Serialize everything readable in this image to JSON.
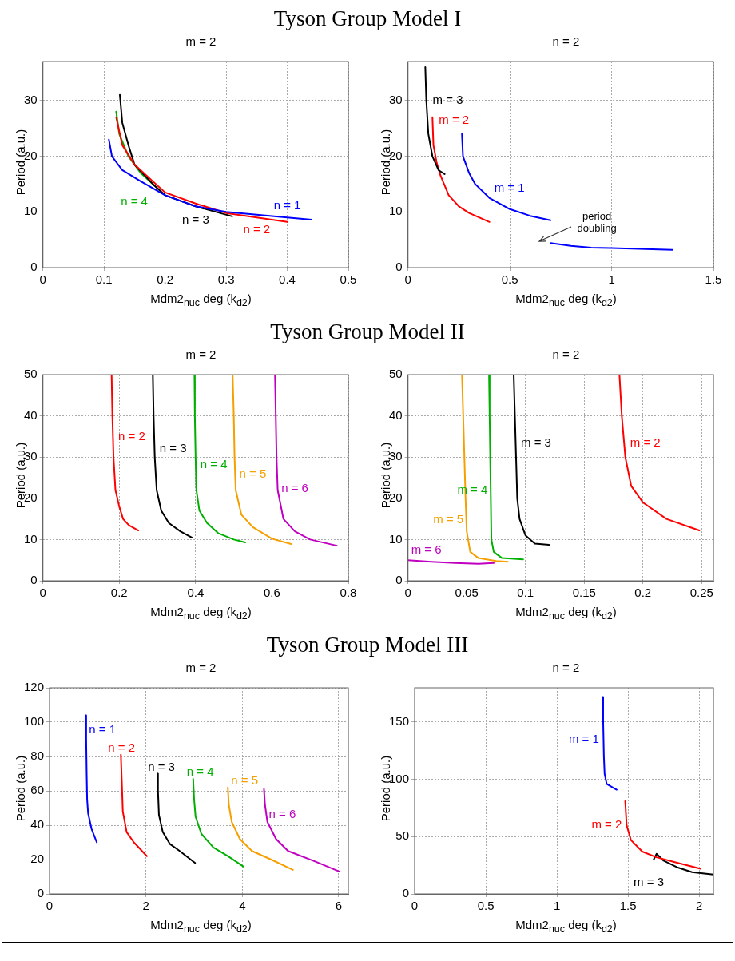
{
  "chart_data": [
    {
      "type": "other",
      "title": "Tyson Group Model I"
    },
    {
      "type": "line",
      "title": "m = 2",
      "xlabel": "Mdm2$_{nuc}$ deg  (k$_{d2}$)",
      "ylabel": "Period (a.u.)",
      "xlim": [
        0,
        0.5
      ],
      "xticks": [
        0,
        0.1,
        0.2,
        0.3,
        0.4,
        0.5
      ],
      "ylim": [
        0,
        37
      ],
      "yticks": [
        0,
        10,
        20,
        30
      ],
      "grid": true,
      "marker": "none",
      "series": [
        {
          "name": "n = 1",
          "color": "#0000ff",
          "x": [
            0.108,
            0.113,
            0.13,
            0.16,
            0.2,
            0.25,
            0.3,
            0.35,
            0.4,
            0.44
          ],
          "values": [
            23,
            20,
            17.5,
            15.5,
            13,
            11,
            10,
            9.5,
            9,
            8.6
          ]
        },
        {
          "name": "n = 2",
          "color": "#ff0000",
          "x": [
            0.12,
            0.13,
            0.15,
            0.18,
            0.2,
            0.25,
            0.3,
            0.35,
            0.4
          ],
          "values": [
            27,
            22,
            18.5,
            15.5,
            13.5,
            11.5,
            9.8,
            9,
            8.2
          ]
        },
        {
          "name": "n = 3",
          "color": "#000000",
          "x": [
            0.126,
            0.13,
            0.14,
            0.15,
            0.18,
            0.2,
            0.25,
            0.31
          ],
          "values": [
            31,
            26,
            22,
            18.5,
            15,
            13,
            11,
            9.2
          ]
        },
        {
          "name": "n = 4",
          "color": "#00b000",
          "x": [
            0.12,
            0.125,
            0.14,
            0.16,
            0.19
          ],
          "values": [
            28,
            24,
            20,
            17,
            14
          ]
        }
      ]
    },
    {
      "type": "line",
      "title": "n = 2",
      "xlabel": "Mdm2$_{nuc}$ deg  (k$_{d2}$)",
      "ylabel": "Period (a.u.)",
      "xlim": [
        0,
        1.5
      ],
      "xticks": [
        0,
        0.5,
        1,
        1.5
      ],
      "ylim": [
        0,
        37
      ],
      "yticks": [
        0,
        10,
        20,
        30
      ],
      "grid": true,
      "marker": "none",
      "series": [
        {
          "name": "m = 3",
          "color": "#000000",
          "x": [
            0.085,
            0.09,
            0.1,
            0.12,
            0.15,
            0.18
          ],
          "values": [
            36,
            30,
            24,
            20,
            17.5,
            16.8
          ]
        },
        {
          "name": "m = 2",
          "color": "#ff0000",
          "x": [
            0.12,
            0.125,
            0.14,
            0.16,
            0.2,
            0.25,
            0.3,
            0.4
          ],
          "values": [
            27,
            22,
            19,
            16.5,
            13,
            11,
            9.8,
            8.2
          ]
        },
        {
          "name": "m = 1",
          "color": "#0000ff",
          "x": [
            0.265,
            0.27,
            0.3,
            0.33,
            0.4,
            0.5,
            0.6,
            0.7
          ],
          "values": [
            24,
            20,
            17,
            15,
            12.5,
            10.5,
            9.3,
            8.5
          ]
        },
        {
          "color": "#0000ff",
          "x": [
            0.7,
            0.8,
            0.9,
            1.0,
            1.1,
            1.3
          ],
          "values": [
            4.4,
            3.9,
            3.6,
            3.5,
            3.4,
            3.2
          ]
        }
      ],
      "annotations": [
        "period doubling"
      ]
    },
    {
      "type": "other",
      "title": "Tyson Group Model II"
    },
    {
      "type": "line",
      "title": "m = 2",
      "xlabel": "Mdm2$_{nuc}$ deg  (k$_{d2}$)",
      "ylabel": "Period (a.u.)",
      "xlim": [
        0,
        0.8
      ],
      "xticks": [
        0,
        0.2,
        0.4,
        0.6,
        0.8
      ],
      "ylim": [
        0,
        50
      ],
      "yticks": [
        0,
        10,
        20,
        30,
        40,
        50
      ],
      "grid": true,
      "marker": "none",
      "series": [
        {
          "name": "n = 2",
          "color": "#ff0000",
          "x": [
            0.18,
            0.182,
            0.185,
            0.19,
            0.2,
            0.21,
            0.225,
            0.25
          ],
          "values": [
            50,
            40,
            30,
            22,
            18,
            15,
            13.5,
            12.2
          ]
        },
        {
          "name": "n = 3",
          "color": "#000000",
          "x": [
            0.288,
            0.29,
            0.293,
            0.298,
            0.31,
            0.33,
            0.36,
            0.39
          ],
          "values": [
            50,
            40,
            30,
            22,
            17,
            14,
            12,
            10.5
          ]
        },
        {
          "name": "n = 4",
          "color": "#00b000",
          "x": [
            0.397,
            0.398,
            0.4,
            0.402,
            0.41,
            0.43,
            0.46,
            0.5,
            0.53
          ],
          "values": [
            50,
            40,
            30,
            22,
            17,
            14,
            11.5,
            10,
            9.3
          ]
        },
        {
          "name": "n = 5",
          "color": "#f5a000",
          "x": [
            0.497,
            0.5,
            0.502,
            0.505,
            0.52,
            0.55,
            0.6,
            0.65
          ],
          "values": [
            50,
            40,
            30,
            22,
            16,
            13,
            10.2,
            8.9
          ]
        },
        {
          "name": "n = 6",
          "color": "#c000c0",
          "x": [
            0.608,
            0.61,
            0.612,
            0.615,
            0.63,
            0.66,
            0.7,
            0.77
          ],
          "values": [
            50,
            40,
            30,
            22,
            15,
            12,
            10,
            8.5
          ]
        }
      ]
    },
    {
      "type": "line",
      "title": "n = 2",
      "xlabel": "Mdm2$_{nuc}$ deg  (k$_{d2}$)",
      "ylabel": "Period (a.u.)",
      "xlim": [
        0,
        0.26
      ],
      "xticks": [
        0,
        0.05,
        0.1,
        0.15,
        0.2,
        0.25
      ],
      "ylim": [
        0,
        50
      ],
      "yticks": [
        0,
        10,
        20,
        30,
        40,
        50
      ],
      "grid": true,
      "marker": "none",
      "series": [
        {
          "name": "m = 2",
          "color": "#ff0000",
          "x": [
            0.18,
            0.182,
            0.185,
            0.19,
            0.2,
            0.22,
            0.248
          ],
          "values": [
            50,
            40,
            30,
            23,
            19,
            15,
            12.2
          ]
        },
        {
          "name": "m = 3",
          "color": "#000000",
          "x": [
            0.09,
            0.091,
            0.092,
            0.093,
            0.095,
            0.1,
            0.108,
            0.12
          ],
          "values": [
            50,
            40,
            30,
            20,
            15,
            11,
            9,
            8.7
          ]
        },
        {
          "name": "m = 4",
          "color": "#00b000",
          "x": [
            0.069,
            0.0695,
            0.07,
            0.0705,
            0.071,
            0.073,
            0.08,
            0.098
          ],
          "values": [
            50,
            40,
            30,
            20,
            10,
            7,
            5.5,
            5.2
          ]
        },
        {
          "name": "m = 5",
          "color": "#f5a000",
          "x": [
            0.046,
            0.047,
            0.048,
            0.049,
            0.05,
            0.053,
            0.06,
            0.075,
            0.085
          ],
          "values": [
            50,
            40,
            30,
            20,
            12,
            7,
            5.5,
            4.8,
            4.6
          ]
        },
        {
          "name": "m = 6",
          "color": "#c000c0",
          "x": [
            0,
            0.02,
            0.04,
            0.06,
            0.073
          ],
          "values": [
            5,
            4.6,
            4.3,
            4.1,
            4.3
          ]
        }
      ]
    },
    {
      "type": "other",
      "title": "Tyson Group Model III"
    },
    {
      "type": "line",
      "title": "m = 2",
      "xlabel": "Mdm2$_{nuc}$ deg  (k$_{d2}$)",
      "ylabel": "Period (a.u.)",
      "xlim": [
        0,
        6.2
      ],
      "xticks": [
        0,
        2,
        4,
        6
      ],
      "ylim": [
        0,
        120
      ],
      "yticks": [
        0,
        20,
        40,
        60,
        80,
        100,
        120
      ],
      "grid": true,
      "marker": "none",
      "series": [
        {
          "name": "n = 1",
          "color": "#0000ff",
          "x": [
            0.75,
            0.76,
            0.77,
            0.78,
            0.8,
            0.87,
            0.98
          ],
          "values": [
            104,
            90,
            70,
            55,
            47,
            38,
            30
          ]
        },
        {
          "name": "n = 2",
          "color": "#ff0000",
          "x": [
            1.48,
            1.5,
            1.52,
            1.6,
            1.75,
            2.02
          ],
          "values": [
            81,
            65,
            48,
            36,
            30,
            22
          ]
        },
        {
          "name": "n = 3",
          "color": "#000000",
          "x": [
            2.24,
            2.25,
            2.27,
            2.35,
            2.5,
            2.7,
            3.02
          ],
          "values": [
            70,
            60,
            46,
            36,
            29,
            25,
            18
          ]
        },
        {
          "name": "n = 4",
          "color": "#00b000",
          "x": [
            2.98,
            3.0,
            3.03,
            3.15,
            3.4,
            3.7,
            4.02
          ],
          "values": [
            67,
            55,
            45,
            35,
            27,
            22,
            16
          ]
        },
        {
          "name": "n = 5",
          "color": "#f5a000",
          "x": [
            3.7,
            3.72,
            3.78,
            3.95,
            4.2,
            4.6,
            5.05
          ],
          "values": [
            62,
            52,
            42,
            32,
            25,
            20,
            14
          ]
        },
        {
          "name": "n = 6",
          "color": "#c000c0",
          "x": [
            4.45,
            4.47,
            4.52,
            4.7,
            4.95,
            5.5,
            6.02
          ],
          "values": [
            61,
            52,
            42,
            32,
            25,
            19,
            13
          ]
        }
      ]
    },
    {
      "type": "line",
      "title": "n = 2",
      "xlabel": "Mdm2$_{nuc}$ deg  (k$_{d2}$)",
      "ylabel": "Period (a.u.)",
      "xlim": [
        0,
        2.1
      ],
      "xticks": [
        0,
        0.5,
        1,
        1.5,
        2
      ],
      "ylim": [
        0,
        180
      ],
      "yticks": [
        0,
        50,
        100,
        150
      ],
      "grid": true,
      "marker": "none",
      "series": [
        {
          "name": "m = 1",
          "color": "#0000ff",
          "x": [
            1.32,
            1.325,
            1.33,
            1.335,
            1.35,
            1.42
          ],
          "values": [
            172,
            150,
            120,
            105,
            96,
            91
          ]
        },
        {
          "name": "m = 2",
          "color": "#ff0000",
          "x": [
            1.48,
            1.49,
            1.52,
            1.6,
            1.7,
            1.85,
            2.01
          ],
          "values": [
            81,
            60,
            47,
            37,
            32,
            27,
            22
          ]
        },
        {
          "name": "m = 3",
          "color": "#000000",
          "x": [
            1.68,
            1.7,
            1.75,
            1.85,
            1.95,
            2.1
          ],
          "values": [
            30,
            35,
            29,
            23,
            19,
            17
          ]
        }
      ]
    }
  ]
}
